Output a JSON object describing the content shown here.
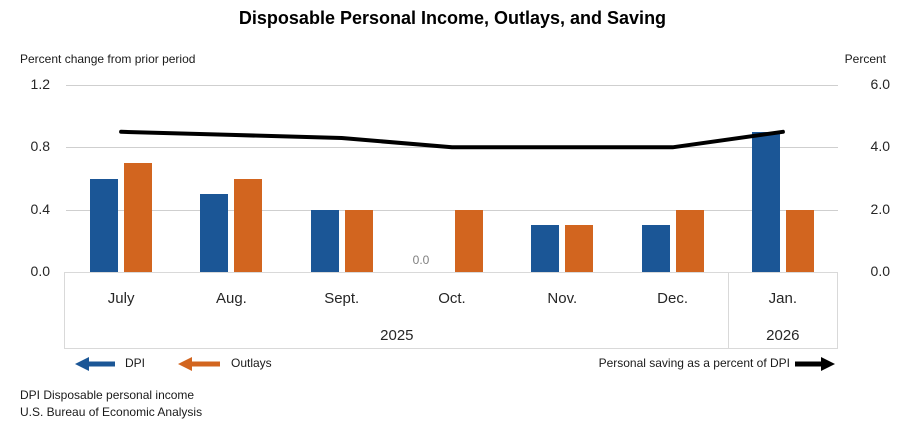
{
  "title": "Disposable Personal Income, Outlays, and Saving",
  "left_axis": {
    "caption": "Percent change from prior period",
    "ticks": [
      "1.2",
      "0.8",
      "0.4",
      "0.0"
    ]
  },
  "right_axis": {
    "caption": "Percent",
    "ticks": [
      "6.0",
      "4.0",
      "2.0",
      "0.0"
    ]
  },
  "chart_data": {
    "type": "bar+line",
    "categories": [
      "July",
      "Aug.",
      "Sept.",
      "Oct.",
      "Nov.",
      "Dec.",
      "Jan."
    ],
    "year_groups": [
      {
        "label": "2025",
        "span": 6
      },
      {
        "label": "2026",
        "span": 1
      }
    ],
    "left_ylim": [
      0,
      1.2
    ],
    "right_ylim": [
      0,
      6.0
    ],
    "series": [
      {
        "name": "DPI",
        "type": "bar",
        "axis": "left",
        "color": "#1B5696",
        "values": [
          0.6,
          0.5,
          0.4,
          0.0,
          0.3,
          0.3,
          0.9
        ]
      },
      {
        "name": "Outlays",
        "type": "bar",
        "axis": "left",
        "color": "#D2651F",
        "values": [
          0.7,
          0.6,
          0.4,
          0.4,
          0.3,
          0.4,
          0.4
        ]
      },
      {
        "name": "Personal saving as a percent of DPI",
        "type": "line",
        "axis": "right",
        "color": "#000000",
        "values": [
          4.5,
          4.4,
          4.3,
          4.0,
          4.0,
          4.0,
          4.5
        ]
      }
    ],
    "zero_label": {
      "series": "DPI",
      "category": "Oct.",
      "text": "0.0"
    },
    "grid": "horizontal",
    "legend_position": "bottom"
  },
  "legend": {
    "dpi_label": "DPI",
    "outlays_label": "Outlays",
    "line_label": "Personal saving as a percent of DPI"
  },
  "footnotes": [
    "DPI Disposable personal income",
    "U.S. Bureau of Economic Analysis"
  ]
}
